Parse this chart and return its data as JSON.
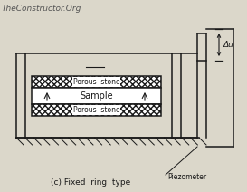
{
  "title": "TheConstructor.Org",
  "caption": "(c) Fixed  ring  type",
  "piezometer_label": "Piezometer",
  "delta_u_label": "Δu",
  "labels_top": "Porous  stone",
  "label_sample": "Sample",
  "labels_bot": "Porous  stone",
  "bg_color": "#dbd7ca",
  "line_color": "#1a1a1a",
  "figsize": [
    2.73,
    2.12
  ],
  "dpi": 100
}
